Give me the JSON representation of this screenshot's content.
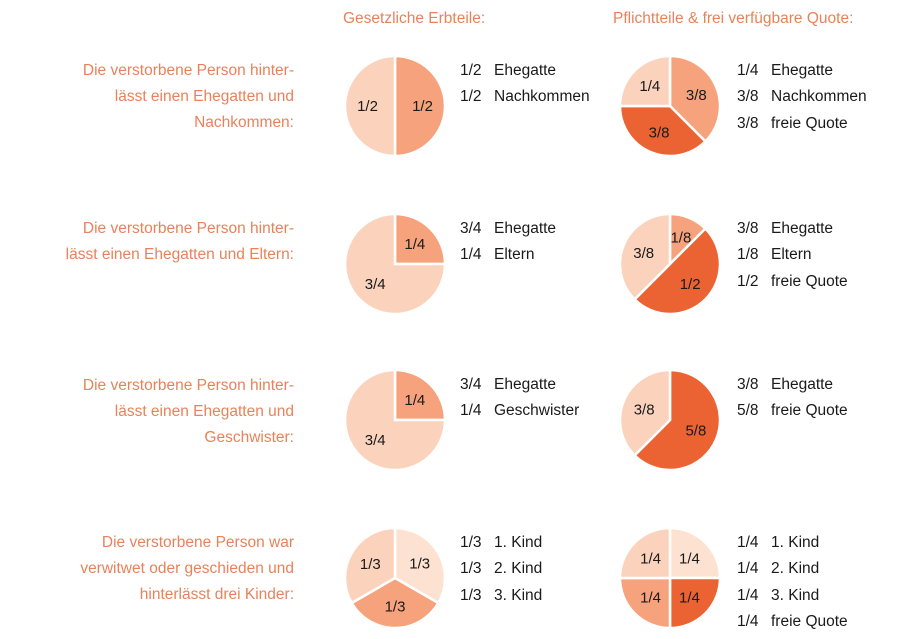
{
  "headers": {
    "legal": "Gesetzliche Erbteile:",
    "compulsory": "Pflichtteile & frei verfügbare Quote:"
  },
  "colors": {
    "text_accent": "#e8825a",
    "light": "#fbd3bd",
    "lighter": "#fde2d2",
    "medium": "#f6a27c",
    "dark": "#ec6333",
    "stroke": "#ffffff"
  },
  "rows": [
    {
      "description": [
        "Die verstorbene Person hinter-",
        "lässt einen Ehegatten und",
        "Nachkommen:"
      ],
      "legal_legend": [
        {
          "fraction": "1/2",
          "label": "Ehegatte"
        },
        {
          "fraction": "1/2",
          "label": "Nachkommen"
        }
      ],
      "compulsory_legend": [
        {
          "fraction": "1/4",
          "label": "Ehegatte"
        },
        {
          "fraction": "3/8",
          "label": "Nachkommen"
        },
        {
          "fraction": "3/8",
          "label": "freie Quote"
        }
      ]
    },
    {
      "description": [
        "Die verstorbene Person hinter-",
        "lässt einen Ehegatten und Eltern:"
      ],
      "legal_legend": [
        {
          "fraction": "3/4",
          "label": "Ehegatte"
        },
        {
          "fraction": "1/4",
          "label": "Eltern"
        }
      ],
      "compulsory_legend": [
        {
          "fraction": "3/8",
          "label": "Ehegatte"
        },
        {
          "fraction": "1/8",
          "label": "Eltern"
        },
        {
          "fraction": "1/2",
          "label": "freie Quote"
        }
      ]
    },
    {
      "description": [
        "Die verstorbene Person hinter-",
        "lässt einen Ehegatten und",
        "Geschwister:"
      ],
      "legal_legend": [
        {
          "fraction": "3/4",
          "label": "Ehegatte"
        },
        {
          "fraction": "1/4",
          "label": "Geschwister"
        }
      ],
      "compulsory_legend": [
        {
          "fraction": "3/8",
          "label": "Ehegatte"
        },
        {
          "fraction": "5/8",
          "label": "freie Quote"
        }
      ]
    },
    {
      "description": [
        "Die verstorbene Person war",
        "verwitwet oder geschieden und",
        "hinterlässt drei Kinder:"
      ],
      "legal_legend": [
        {
          "fraction": "1/3",
          "label": "1. Kind"
        },
        {
          "fraction": "1/3",
          "label": "2. Kind"
        },
        {
          "fraction": "1/3",
          "label": "3. Kind"
        }
      ],
      "compulsory_legend": [
        {
          "fraction": "1/4",
          "label": "1. Kind"
        },
        {
          "fraction": "1/4",
          "label": "2. Kind"
        },
        {
          "fraction": "1/4",
          "label": "3. Kind"
        },
        {
          "fraction": "1/4",
          "label": "freie Quote"
        }
      ]
    }
  ],
  "chart_data": [
    {
      "type": "pie",
      "title": "",
      "slices": [
        {
          "label": "1/2",
          "value": 0.5,
          "color": "#f6a27c"
        },
        {
          "label": "1/2",
          "value": 0.5,
          "color": "#fbd3bd"
        }
      ]
    },
    {
      "type": "pie",
      "title": "",
      "slices": [
        {
          "label": "3/8",
          "value": 0.375,
          "color": "#f6a27c"
        },
        {
          "label": "3/8",
          "value": 0.375,
          "color": "#ec6333"
        },
        {
          "label": "1/4",
          "value": 0.25,
          "color": "#fbd3bd"
        }
      ]
    },
    {
      "type": "pie",
      "title": "",
      "slices": [
        {
          "label": "1/4",
          "value": 0.25,
          "color": "#f6a27c"
        },
        {
          "label": "3/4",
          "value": 0.75,
          "color": "#fbd3bd"
        }
      ]
    },
    {
      "type": "pie",
      "title": "",
      "slices": [
        {
          "label": "1/8",
          "value": 0.125,
          "color": "#f6a27c"
        },
        {
          "label": "1/2",
          "value": 0.5,
          "color": "#ec6333"
        },
        {
          "label": "3/8",
          "value": 0.375,
          "color": "#fbd3bd"
        }
      ]
    },
    {
      "type": "pie",
      "title": "",
      "slices": [
        {
          "label": "1/4",
          "value": 0.25,
          "color": "#f6a27c"
        },
        {
          "label": "3/4",
          "value": 0.75,
          "color": "#fbd3bd"
        }
      ]
    },
    {
      "type": "pie",
      "title": "",
      "slices": [
        {
          "label": "5/8",
          "value": 0.625,
          "color": "#ec6333"
        },
        {
          "label": "3/8",
          "value": 0.375,
          "color": "#fbd3bd"
        }
      ]
    },
    {
      "type": "pie",
      "title": "",
      "slices": [
        {
          "label": "1/3",
          "value": 0.3333,
          "color": "#fde2d2"
        },
        {
          "label": "1/3",
          "value": 0.3333,
          "color": "#f6a27c"
        },
        {
          "label": "1/3",
          "value": 0.3334,
          "color": "#fbd3bd"
        }
      ]
    },
    {
      "type": "pie",
      "title": "",
      "slices": [
        {
          "label": "1/4",
          "value": 0.25,
          "color": "#fde2d2"
        },
        {
          "label": "1/4",
          "value": 0.25,
          "color": "#ec6333"
        },
        {
          "label": "1/4",
          "value": 0.25,
          "color": "#f6a27c"
        },
        {
          "label": "1/4",
          "value": 0.25,
          "color": "#fbd3bd"
        }
      ]
    }
  ]
}
